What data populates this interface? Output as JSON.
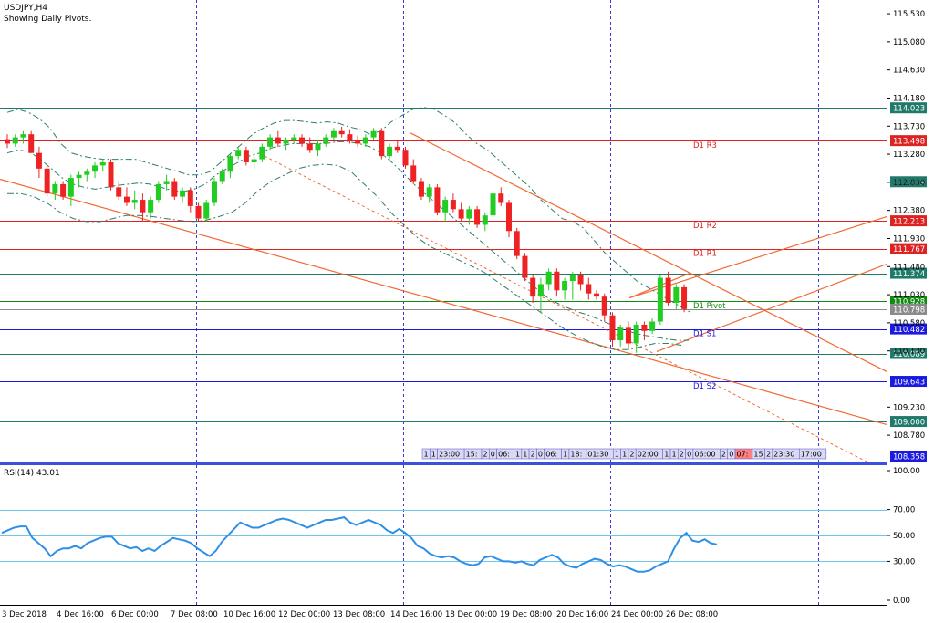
{
  "window": {
    "symbol_title": "USDJPY,H4",
    "indicator_note": "Showing Daily Pivots."
  },
  "rsi_panel": {
    "label": "RSI(14) 43.01",
    "ticks": [
      "100.00",
      "70.00",
      "50.00",
      "30.00",
      "0.00"
    ]
  },
  "price_ticks": [
    "115.530",
    "115.080",
    "114.630",
    "114.180",
    "113.730",
    "113.280",
    "112.830",
    "112.380",
    "111.930",
    "111.480",
    "111.030",
    "110.580",
    "110.130",
    "109.230",
    "108.780"
  ],
  "price_tags": [
    {
      "text": "114.023",
      "value": 114.023,
      "color": "#1f7a6a"
    },
    {
      "text": "113.498",
      "value": 113.498,
      "color": "#dd2222"
    },
    {
      "text": "112.839",
      "value": 112.839,
      "color": "#1f7a6a"
    },
    {
      "text": "112.213",
      "value": 112.213,
      "color": "#dd2222"
    },
    {
      "text": "111.767",
      "value": 111.767,
      "color": "#dd2222"
    },
    {
      "text": "111.374",
      "value": 111.374,
      "color": "#1f7a6a"
    },
    {
      "text": "110.928",
      "value": 110.928,
      "color": "#108a10"
    },
    {
      "text": "110.798",
      "value": 110.798,
      "color": "#8a8a8a"
    },
    {
      "text": "110.482",
      "value": 110.482,
      "color": "#1a1ae0"
    },
    {
      "text": "110.089",
      "value": 110.089,
      "color": "#1f7a6a"
    },
    {
      "text": "109.643",
      "value": 109.643,
      "color": "#1a1ae0"
    },
    {
      "text": "109.000",
      "value": 109.0,
      "color": "#1f7a6a"
    },
    {
      "text": "108.358",
      "value": 108.358,
      "color": "#1a1ae0"
    }
  ],
  "pivot_labels": [
    {
      "text": "D1 R3",
      "value": 113.498,
      "color": "#dd2222"
    },
    {
      "text": "D1 R2",
      "value": 112.213,
      "color": "#dd2222"
    },
    {
      "text": "D1 R1",
      "value": 111.767,
      "color": "#dd2222"
    },
    {
      "text": "D1 Pivot",
      "value": 110.928,
      "color": "#108a10"
    },
    {
      "text": "D1 S1",
      "value": 110.482,
      "color": "#1a1ae0"
    },
    {
      "text": "D1 S2",
      "value": 109.643,
      "color": "#1a1ae0"
    }
  ],
  "time_axis_labels": [
    "3 Dec 2018",
    "4 Dec 16:00",
    "6 Dec 00:00",
    "7 Dec 08:00",
    "10 Dec 16:00",
    "12 Dec 00:00",
    "13 Dec 08:00",
    "14 Dec 16:00",
    "18 Dec 00:00",
    "19 Dec 08:00",
    "20 Dec 16:00",
    "24 Dec 00:00",
    "26 Dec 08:00"
  ],
  "time_marker_strip": [
    "1",
    "1",
    "23:00",
    "15:",
    "2",
    "0",
    "06:",
    "1",
    "1",
    "2",
    "0",
    "06:",
    "1",
    "18:",
    "01:30",
    "1",
    "1",
    "2",
    "02:00",
    "1",
    "1",
    "2",
    "0",
    "06:00",
    "2",
    "0",
    "07:",
    "15",
    "2",
    "23:30",
    "17:00"
  ],
  "chart_data": {
    "type": "candlestick",
    "symbol": "USDJPY",
    "timeframe": "H4",
    "price_range": [
      108.358,
      115.75
    ],
    "candles": [
      {
        "o": 113.52,
        "h": 113.6,
        "l": 113.38,
        "c": 113.45
      },
      {
        "o": 113.45,
        "h": 113.6,
        "l": 113.4,
        "c": 113.55
      },
      {
        "o": 113.55,
        "h": 113.65,
        "l": 113.45,
        "c": 113.6
      },
      {
        "o": 113.6,
        "h": 113.65,
        "l": 113.3,
        "c": 113.3
      },
      {
        "o": 113.3,
        "h": 113.4,
        "l": 112.9,
        "c": 113.05
      },
      {
        "o": 113.05,
        "h": 113.1,
        "l": 112.6,
        "c": 112.65
      },
      {
        "o": 112.65,
        "h": 112.85,
        "l": 112.55,
        "c": 112.8
      },
      {
        "o": 112.8,
        "h": 112.85,
        "l": 112.55,
        "c": 112.6
      },
      {
        "o": 112.6,
        "h": 112.95,
        "l": 112.45,
        "c": 112.9
      },
      {
        "o": 112.9,
        "h": 113.0,
        "l": 112.75,
        "c": 112.95
      },
      {
        "o": 112.95,
        "h": 113.05,
        "l": 112.85,
        "c": 113.0
      },
      {
        "o": 113.0,
        "h": 113.15,
        "l": 112.9,
        "c": 113.1
      },
      {
        "o": 113.1,
        "h": 113.2,
        "l": 113.0,
        "c": 113.15
      },
      {
        "o": 113.15,
        "h": 113.2,
        "l": 112.7,
        "c": 112.75
      },
      {
        "o": 112.75,
        "h": 112.85,
        "l": 112.55,
        "c": 112.6
      },
      {
        "o": 112.6,
        "h": 112.75,
        "l": 112.45,
        "c": 112.5
      },
      {
        "o": 112.5,
        "h": 112.7,
        "l": 112.4,
        "c": 112.55
      },
      {
        "o": 112.55,
        "h": 112.65,
        "l": 112.2,
        "c": 112.35
      },
      {
        "o": 112.35,
        "h": 112.6,
        "l": 112.25,
        "c": 112.55
      },
      {
        "o": 112.55,
        "h": 112.85,
        "l": 112.5,
        "c": 112.8
      },
      {
        "o": 112.8,
        "h": 112.95,
        "l": 112.7,
        "c": 112.85
      },
      {
        "o": 112.85,
        "h": 112.9,
        "l": 112.55,
        "c": 112.6
      },
      {
        "o": 112.6,
        "h": 112.75,
        "l": 112.5,
        "c": 112.7
      },
      {
        "o": 112.7,
        "h": 112.75,
        "l": 112.35,
        "c": 112.45
      },
      {
        "o": 112.45,
        "h": 112.5,
        "l": 112.2,
        "c": 112.25
      },
      {
        "o": 112.25,
        "h": 112.55,
        "l": 112.2,
        "c": 112.5
      },
      {
        "o": 112.5,
        "h": 112.9,
        "l": 112.45,
        "c": 112.85
      },
      {
        "o": 112.85,
        "h": 113.05,
        "l": 112.8,
        "c": 113.0
      },
      {
        "o": 113.0,
        "h": 113.3,
        "l": 112.9,
        "c": 113.25
      },
      {
        "o": 113.25,
        "h": 113.4,
        "l": 113.2,
        "c": 113.35
      },
      {
        "o": 113.35,
        "h": 113.4,
        "l": 113.1,
        "c": 113.15
      },
      {
        "o": 113.15,
        "h": 113.3,
        "l": 113.05,
        "c": 113.2
      },
      {
        "o": 113.2,
        "h": 113.45,
        "l": 113.15,
        "c": 113.4
      },
      {
        "o": 113.4,
        "h": 113.6,
        "l": 113.35,
        "c": 113.55
      },
      {
        "o": 113.55,
        "h": 113.65,
        "l": 113.4,
        "c": 113.45
      },
      {
        "o": 113.45,
        "h": 113.55,
        "l": 113.35,
        "c": 113.5
      },
      {
        "o": 113.5,
        "h": 113.6,
        "l": 113.45,
        "c": 113.55
      },
      {
        "o": 113.55,
        "h": 113.6,
        "l": 113.4,
        "c": 113.45
      },
      {
        "o": 113.45,
        "h": 113.55,
        "l": 113.3,
        "c": 113.35
      },
      {
        "o": 113.35,
        "h": 113.5,
        "l": 113.25,
        "c": 113.45
      },
      {
        "o": 113.45,
        "h": 113.6,
        "l": 113.4,
        "c": 113.55
      },
      {
        "o": 113.55,
        "h": 113.7,
        "l": 113.5,
        "c": 113.65
      },
      {
        "o": 113.65,
        "h": 113.72,
        "l": 113.55,
        "c": 113.6
      },
      {
        "o": 113.6,
        "h": 113.68,
        "l": 113.45,
        "c": 113.5
      },
      {
        "o": 113.5,
        "h": 113.58,
        "l": 113.4,
        "c": 113.45
      },
      {
        "o": 113.45,
        "h": 113.6,
        "l": 113.4,
        "c": 113.55
      },
      {
        "o": 113.55,
        "h": 113.7,
        "l": 113.5,
        "c": 113.65
      },
      {
        "o": 113.65,
        "h": 113.7,
        "l": 113.2,
        "c": 113.25
      },
      {
        "o": 113.25,
        "h": 113.45,
        "l": 113.2,
        "c": 113.4
      },
      {
        "o": 113.4,
        "h": 113.5,
        "l": 113.3,
        "c": 113.35
      },
      {
        "o": 113.35,
        "h": 113.4,
        "l": 113.05,
        "c": 113.1
      },
      {
        "o": 113.1,
        "h": 113.2,
        "l": 112.8,
        "c": 112.85
      },
      {
        "o": 112.85,
        "h": 112.9,
        "l": 112.55,
        "c": 112.6
      },
      {
        "o": 112.6,
        "h": 112.8,
        "l": 112.5,
        "c": 112.75
      },
      {
        "o": 112.75,
        "h": 112.8,
        "l": 112.3,
        "c": 112.35
      },
      {
        "o": 112.35,
        "h": 112.6,
        "l": 112.2,
        "c": 112.55
      },
      {
        "o": 112.55,
        "h": 112.65,
        "l": 112.35,
        "c": 112.4
      },
      {
        "o": 112.4,
        "h": 112.5,
        "l": 112.2,
        "c": 112.25
      },
      {
        "o": 112.25,
        "h": 112.45,
        "l": 112.15,
        "c": 112.4
      },
      {
        "o": 112.4,
        "h": 112.45,
        "l": 112.1,
        "c": 112.15
      },
      {
        "o": 112.15,
        "h": 112.35,
        "l": 112.05,
        "c": 112.3
      },
      {
        "o": 112.3,
        "h": 112.7,
        "l": 112.25,
        "c": 112.65
      },
      {
        "o": 112.65,
        "h": 112.75,
        "l": 112.45,
        "c": 112.5
      },
      {
        "o": 112.5,
        "h": 112.55,
        "l": 111.95,
        "c": 112.05
      },
      {
        "o": 112.05,
        "h": 112.1,
        "l": 111.6,
        "c": 111.65
      },
      {
        "o": 111.65,
        "h": 111.7,
        "l": 111.25,
        "c": 111.3
      },
      {
        "o": 111.3,
        "h": 111.35,
        "l": 110.9,
        "c": 111.0
      },
      {
        "o": 111.0,
        "h": 111.3,
        "l": 110.75,
        "c": 111.2
      },
      {
        "o": 111.2,
        "h": 111.45,
        "l": 111.1,
        "c": 111.4
      },
      {
        "o": 111.4,
        "h": 111.45,
        "l": 111.0,
        "c": 111.1
      },
      {
        "o": 111.1,
        "h": 111.3,
        "l": 110.95,
        "c": 111.25
      },
      {
        "o": 111.25,
        "h": 111.4,
        "l": 110.95,
        "c": 111.35
      },
      {
        "o": 111.35,
        "h": 111.4,
        "l": 111.1,
        "c": 111.2
      },
      {
        "o": 111.2,
        "h": 111.3,
        "l": 110.95,
        "c": 111.05
      },
      {
        "o": 111.05,
        "h": 111.1,
        "l": 110.95,
        "c": 111.0
      },
      {
        "o": 111.0,
        "h": 111.05,
        "l": 110.6,
        "c": 110.7
      },
      {
        "o": 110.7,
        "h": 110.75,
        "l": 110.2,
        "c": 110.3
      },
      {
        "o": 110.3,
        "h": 110.55,
        "l": 110.2,
        "c": 110.5
      },
      {
        "o": 110.5,
        "h": 110.6,
        "l": 110.15,
        "c": 110.25
      },
      {
        "o": 110.25,
        "h": 110.6,
        "l": 110.1,
        "c": 110.55
      },
      {
        "o": 110.55,
        "h": 110.6,
        "l": 110.3,
        "c": 110.45
      },
      {
        "o": 110.45,
        "h": 110.65,
        "l": 110.4,
        "c": 110.6
      },
      {
        "o": 110.6,
        "h": 111.35,
        "l": 110.55,
        "c": 111.3
      },
      {
        "o": 111.3,
        "h": 111.4,
        "l": 110.85,
        "c": 110.9
      },
      {
        "o": 110.9,
        "h": 111.2,
        "l": 110.8,
        "c": 111.15
      },
      {
        "o": 111.15,
        "h": 111.2,
        "l": 110.75,
        "c": 110.8
      }
    ],
    "bollinger_upper": [
      113.95,
      114.0,
      113.95,
      113.85,
      113.7,
      113.45,
      113.3,
      113.25,
      113.22,
      113.2,
      113.2,
      113.2,
      113.2,
      113.15,
      113.1,
      113.05,
      113.0,
      112.95,
      112.95,
      113.0,
      113.15,
      113.3,
      113.45,
      113.6,
      113.7,
      113.78,
      113.82,
      113.82,
      113.8,
      113.78,
      113.8,
      113.78,
      113.72,
      113.68,
      113.6,
      113.65,
      113.8,
      113.9,
      114.0,
      114.03,
      114.0,
      113.9,
      113.78,
      113.6,
      113.45,
      113.35,
      113.2,
      113.05,
      112.9,
      112.75,
      112.55,
      112.4,
      112.25,
      112.2,
      112.1,
      111.9,
      111.7,
      111.55,
      111.4,
      111.25,
      111.15,
      111.05,
      110.95,
      110.85,
      110.75
    ],
    "bollinger_mid": [
      113.3,
      113.35,
      113.32,
      113.2,
      113.05,
      112.9,
      112.8,
      112.75,
      112.72,
      112.75,
      112.78,
      112.8,
      112.82,
      112.8,
      112.75,
      112.7,
      112.68,
      112.72,
      112.8,
      112.95,
      113.05,
      113.15,
      113.25,
      113.3,
      113.38,
      113.42,
      113.45,
      113.45,
      113.45,
      113.45,
      113.48,
      113.48,
      113.45,
      113.4,
      113.3,
      113.15,
      112.98,
      112.8,
      112.65,
      112.5,
      112.35,
      112.2,
      112.05,
      111.9,
      111.75,
      111.6,
      111.45,
      111.3,
      111.15,
      111.0,
      110.9,
      110.82,
      110.75,
      110.7,
      110.62,
      110.55,
      110.48,
      110.42,
      110.38,
      110.35,
      110.32,
      110.3,
      110.3
    ],
    "bollinger_lower": [
      112.65,
      112.65,
      112.6,
      112.5,
      112.35,
      112.25,
      112.2,
      112.2,
      112.25,
      112.3,
      112.3,
      112.28,
      112.25,
      112.22,
      112.2,
      112.22,
      112.28,
      112.35,
      112.5,
      112.7,
      112.85,
      112.95,
      113.05,
      113.1,
      113.12,
      113.1,
      113.0,
      112.8,
      112.6,
      112.35,
      112.15,
      111.95,
      111.8,
      111.7,
      111.6,
      111.5,
      111.4,
      111.25,
      111.1,
      110.95,
      110.8,
      110.65,
      110.5,
      110.38,
      110.28,
      110.2,
      110.15,
      110.15,
      110.2,
      110.25,
      110.25,
      110.22
    ],
    "pivot_levels": {
      "R3": 113.498,
      "R2": 112.213,
      "R1": 111.767,
      "Pivot": 110.928,
      "S1": 110.482,
      "S2": 109.643
    },
    "horizontal_levels": [
      114.023,
      112.839,
      111.374,
      110.798,
      110.089,
      109.0
    ],
    "rsi": {
      "period": 14,
      "last": 43.01,
      "ylim": [
        0,
        100
      ],
      "levels": [
        70,
        50,
        30
      ],
      "values": [
        52,
        54,
        56,
        57,
        57,
        48,
        44,
        40,
        34,
        38,
        40,
        40,
        42,
        40,
        44,
        46,
        48,
        49,
        49,
        44,
        42,
        40,
        41,
        38,
        40,
        38,
        42,
        45,
        48,
        47,
        46,
        44,
        40,
        37,
        34,
        38,
        45,
        50,
        55,
        60,
        58,
        56,
        56,
        58,
        60,
        62,
        63,
        62,
        60,
        58,
        56,
        58,
        60,
        62,
        62,
        63,
        64,
        60,
        58,
        60,
        62,
        60,
        58,
        54,
        52,
        55,
        52,
        48,
        42,
        40,
        36,
        34,
        33,
        34,
        33,
        30,
        28,
        27,
        28,
        33,
        34,
        32,
        30,
        30,
        29,
        30,
        28,
        27,
        31,
        33,
        35,
        33,
        28,
        26,
        25,
        28,
        30,
        32,
        31,
        28,
        26,
        27,
        26,
        24,
        22,
        22,
        23,
        26,
        28,
        30,
        40,
        48,
        52,
        46,
        45,
        47,
        44,
        43
      ]
    }
  }
}
